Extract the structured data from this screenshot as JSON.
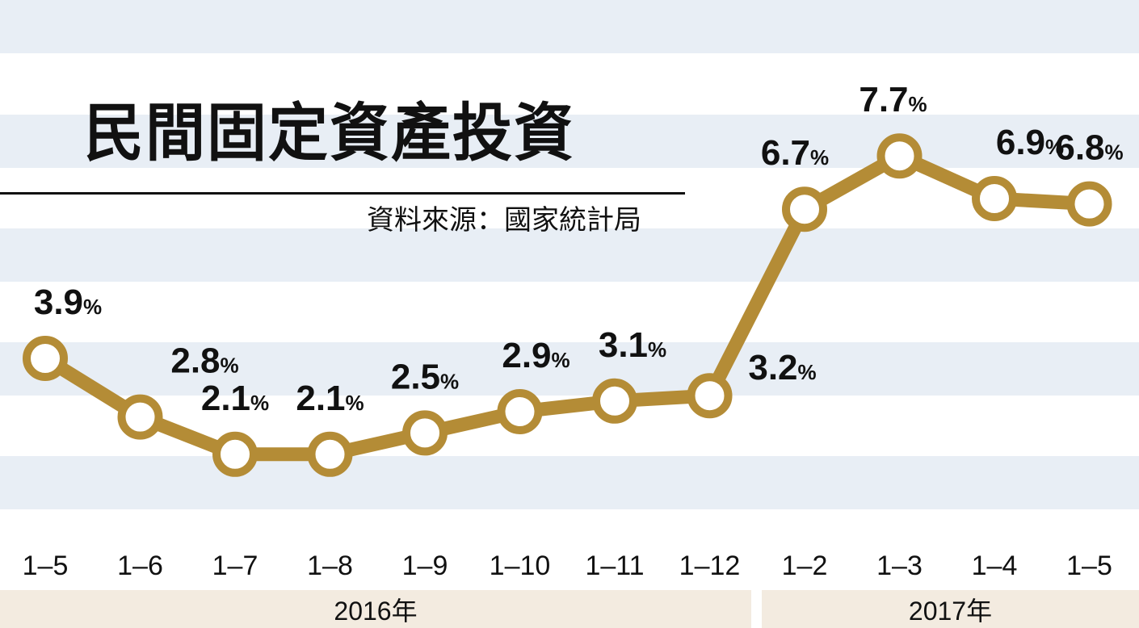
{
  "title": "民間固定資產投資",
  "source": "資料來源：國家統計局",
  "colors": {
    "line": "#b48c36",
    "stripe": "#e8eef5",
    "year_band": "#f3ebe0",
    "text": "#111111"
  },
  "years": [
    "2016年",
    "2017年"
  ],
  "chart_data": {
    "type": "line",
    "title": "民間固定資產投資",
    "categories": [
      "1–5",
      "1–6",
      "1–7",
      "1–8",
      "1–9",
      "1–10",
      "1–11",
      "1–12",
      "1–2",
      "1–3",
      "1–4",
      "1–5"
    ],
    "year_groups": [
      {
        "label": "2016年",
        "categories": [
          "1–5",
          "1–6",
          "1–7",
          "1–8",
          "1–9",
          "1–10",
          "1–11",
          "1–12"
        ]
      },
      {
        "label": "2017年",
        "categories": [
          "1–2",
          "1–3",
          "1–4",
          "1–5"
        ]
      }
    ],
    "values": [
      3.9,
      2.8,
      2.1,
      2.1,
      2.5,
      2.9,
      3.1,
      3.2,
      6.7,
      7.7,
      6.9,
      6.8
    ],
    "value_labels": [
      "3.9",
      "2.8",
      "2.1",
      "2.1",
      "2.5",
      "2.9",
      "3.1",
      "3.2",
      "6.7",
      "7.7",
      "6.9",
      "6.8"
    ],
    "unit": "%",
    "xlabel": "",
    "ylabel": "",
    "grid": "horizontal stripes",
    "legend": "none"
  }
}
